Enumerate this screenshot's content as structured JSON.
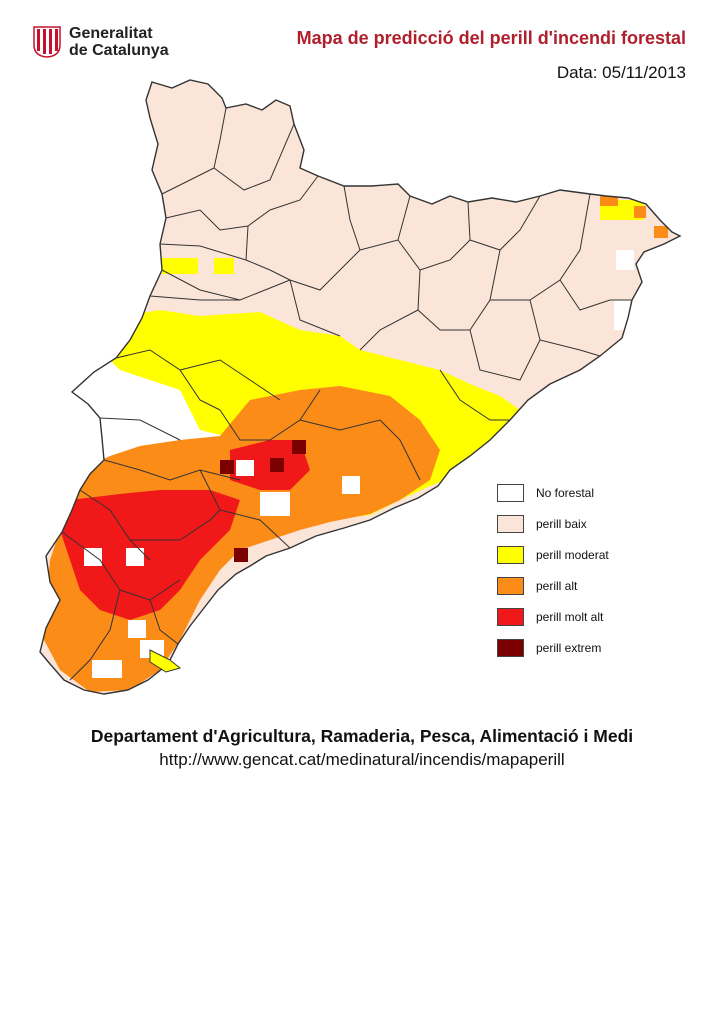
{
  "header": {
    "brand_line1": "Generalitat",
    "brand_line2": "de Catalunya",
    "title": "Mapa de predicció del perill d'incendi forestal",
    "date": "Data: 05/11/2013"
  },
  "legend": [
    {
      "label": "No forestal",
      "color": "#ffffff"
    },
    {
      "label": "perill baix",
      "color": "#fbe4d8"
    },
    {
      "label": "perill moderat",
      "color": "#ffff00"
    },
    {
      "label": "perill alt",
      "color": "#fb8c18"
    },
    {
      "label": "perill molt alt",
      "color": "#f01818"
    },
    {
      "label": "perill extrem",
      "color": "#7a0000"
    }
  ],
  "colors": {
    "title": "#b0202c",
    "boundary": "#333333",
    "shield_red": "#c8102e"
  },
  "footer": {
    "department": "Departament d'Agricultura, Ramaderia, Pesca, Alimentació i Medi",
    "url": "http://www.gencat.cat/medinatural/incendis/mapaperill"
  }
}
